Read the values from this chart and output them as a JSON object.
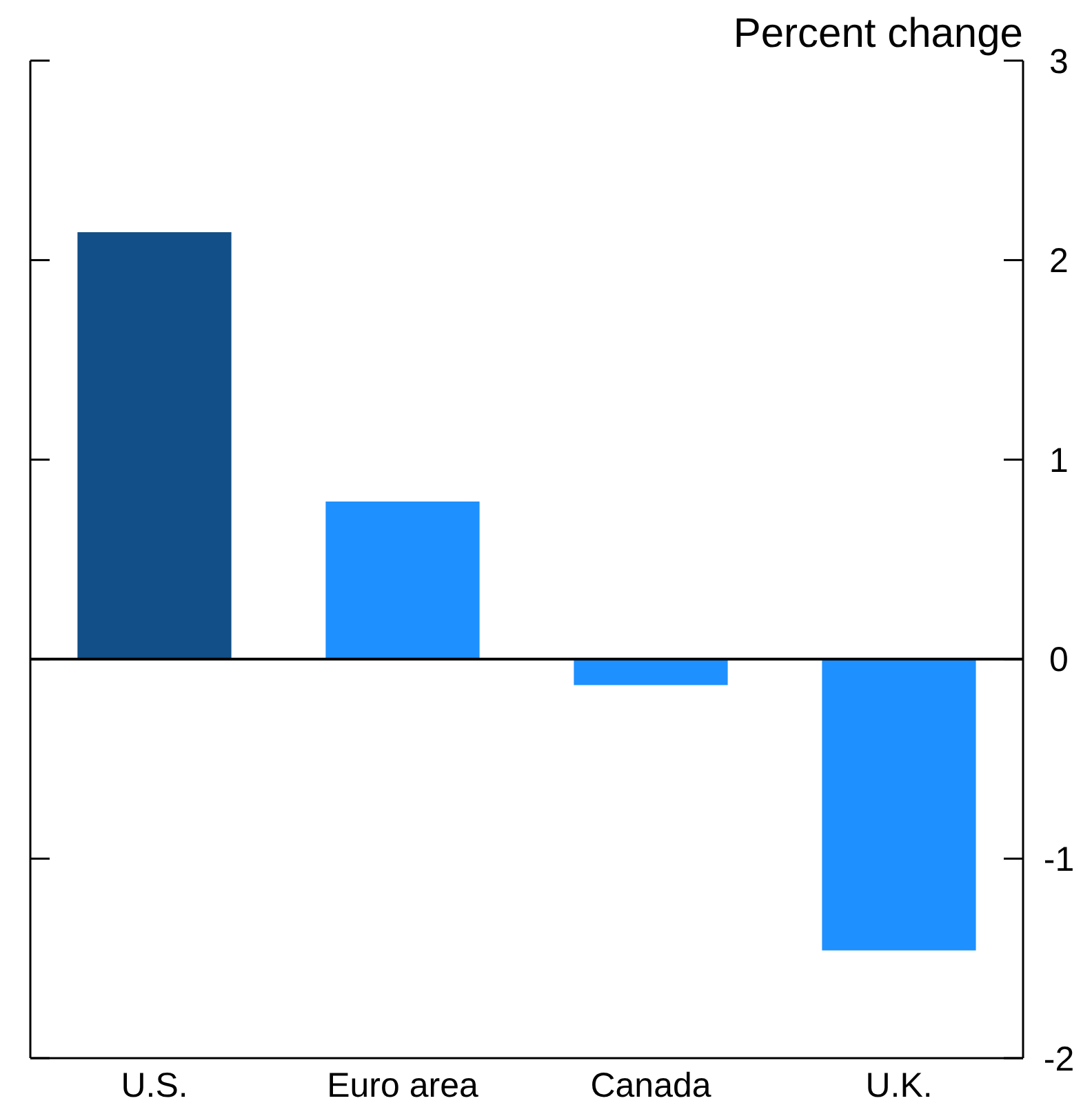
{
  "chart_data": {
    "type": "bar",
    "ylabel": "Percent change",
    "categories": [
      "U.S.",
      "Euro area",
      "Canada",
      "U.K."
    ],
    "values": [
      2.14,
      0.79,
      -0.13,
      -1.46
    ],
    "colors": [
      "#124e87",
      "#1e90ff",
      "#1e90ff",
      "#1e90ff"
    ],
    "ylim": [
      -2,
      3
    ],
    "yticks": [
      -2,
      -1,
      0,
      1,
      2,
      3
    ]
  }
}
